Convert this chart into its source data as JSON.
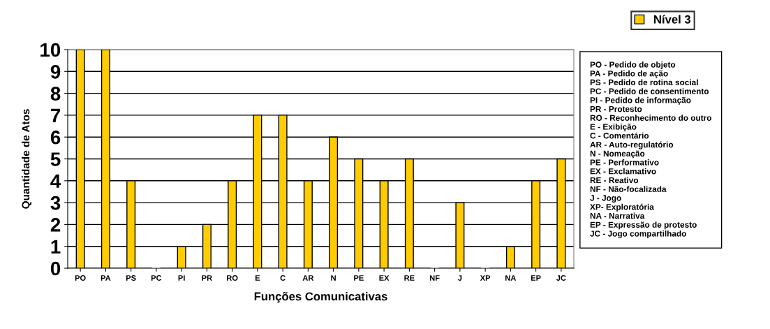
{
  "chart_data": {
    "type": "bar",
    "xlabel": "Funções Comunicativas",
    "ylabel": "Quantidade de Atos",
    "categories": [
      "PO",
      "PA",
      "PS",
      "PC",
      "PI",
      "PR",
      "RO",
      "E",
      "C",
      "AR",
      "N",
      "PE",
      "EX",
      "RE",
      "NF",
      "J",
      "XP",
      "NA",
      "EP",
      "JC"
    ],
    "series": [
      {
        "name": "Nível 3",
        "color": "#ffcc00",
        "values": [
          10,
          10,
          4,
          0,
          1,
          2,
          4,
          7,
          7,
          4,
          6,
          5,
          4,
          5,
          0,
          3,
          0,
          1,
          4,
          5
        ]
      }
    ],
    "ylim": [
      0,
      10
    ],
    "yticks": [
      0,
      1,
      2,
      3,
      4,
      5,
      6,
      7,
      8,
      9,
      10
    ],
    "grid": "y",
    "legend": "top right",
    "annotations": [
      "PO - Pedido de objeto\nPA - Pedido de ação\nPS - Pedido de rotina social\nPC - Pedido de consentimento\nPI - Pedido de informação\nPR - Protesto\nRO - Reconhecimento do outro\nE - Exibição\nC - Comentário\nAR - Auto-regulatório\nN - Nomeação\nPE - Performativo\nEX - Exclamativo\nRE - Reativo\nNF - Não-focalizada\nJ - Jogo\nXP- Exploratória\nNA - Narrativa\nEP - Expressão de protesto\nJC - Jogo compartilhado"
    ]
  }
}
